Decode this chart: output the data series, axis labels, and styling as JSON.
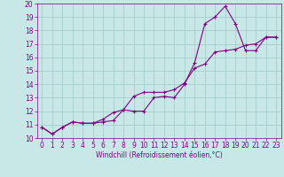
{
  "xlabel": "Windchill (Refroidissement éolien,°C)",
  "x_values": [
    0,
    1,
    2,
    3,
    4,
    5,
    6,
    7,
    8,
    9,
    10,
    11,
    12,
    13,
    14,
    15,
    16,
    17,
    18,
    19,
    20,
    21,
    22,
    23
  ],
  "line1_y": [
    10.8,
    10.3,
    10.8,
    11.2,
    11.1,
    11.1,
    11.2,
    11.3,
    12.1,
    12.0,
    12.0,
    13.0,
    13.1,
    13.0,
    14.0,
    15.6,
    18.5,
    19.0,
    19.8,
    18.5,
    16.5,
    16.5,
    17.5,
    17.5
  ],
  "line2_y": [
    10.8,
    10.3,
    10.8,
    11.2,
    11.1,
    11.1,
    11.4,
    11.9,
    12.1,
    13.1,
    13.4,
    13.4,
    13.4,
    13.6,
    14.1,
    15.2,
    15.5,
    16.4,
    16.5,
    16.6,
    16.9,
    17.0,
    17.5,
    17.5
  ],
  "ylim": [
    10,
    20
  ],
  "xlim": [
    0,
    23
  ],
  "yticks": [
    10,
    11,
    12,
    13,
    14,
    15,
    16,
    17,
    18,
    19,
    20
  ],
  "xticks": [
    0,
    1,
    2,
    3,
    4,
    5,
    6,
    7,
    8,
    9,
    10,
    11,
    12,
    13,
    14,
    15,
    16,
    17,
    18,
    19,
    20,
    21,
    22,
    23
  ],
  "line_color": "#800080",
  "bg_color": "#c8e8e8",
  "grid_color": "#a0c8c8",
  "label_fontsize": 5.5,
  "tick_fontsize": 5.5
}
